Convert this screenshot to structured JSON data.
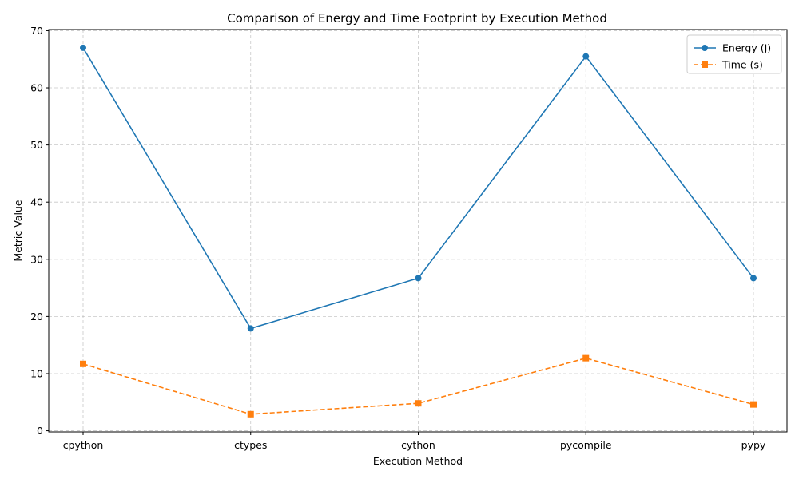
{
  "chart_data": {
    "type": "line",
    "title": "Comparison of Energy and Time Footprint by Execution Method",
    "xlabel": "Execution Method",
    "ylabel": "Metric Value",
    "categories": [
      "cpython",
      "ctypes",
      "cython",
      "pycompile",
      "pypy"
    ],
    "ylim": [
      0,
      70
    ],
    "yticks": [
      0,
      10,
      20,
      30,
      40,
      50,
      60,
      70
    ],
    "grid": true,
    "legend_position": "top-right",
    "series": [
      {
        "name": "Energy (J)",
        "values": [
          67.0,
          17.9,
          26.7,
          65.5,
          26.7
        ],
        "color": "#1f77b4",
        "marker": "circle",
        "line_style": "solid"
      },
      {
        "name": "Time (s)",
        "values": [
          11.7,
          2.9,
          4.8,
          12.7,
          4.6
        ],
        "color": "#ff7f0e",
        "marker": "square",
        "line_style": "dashed"
      }
    ]
  }
}
